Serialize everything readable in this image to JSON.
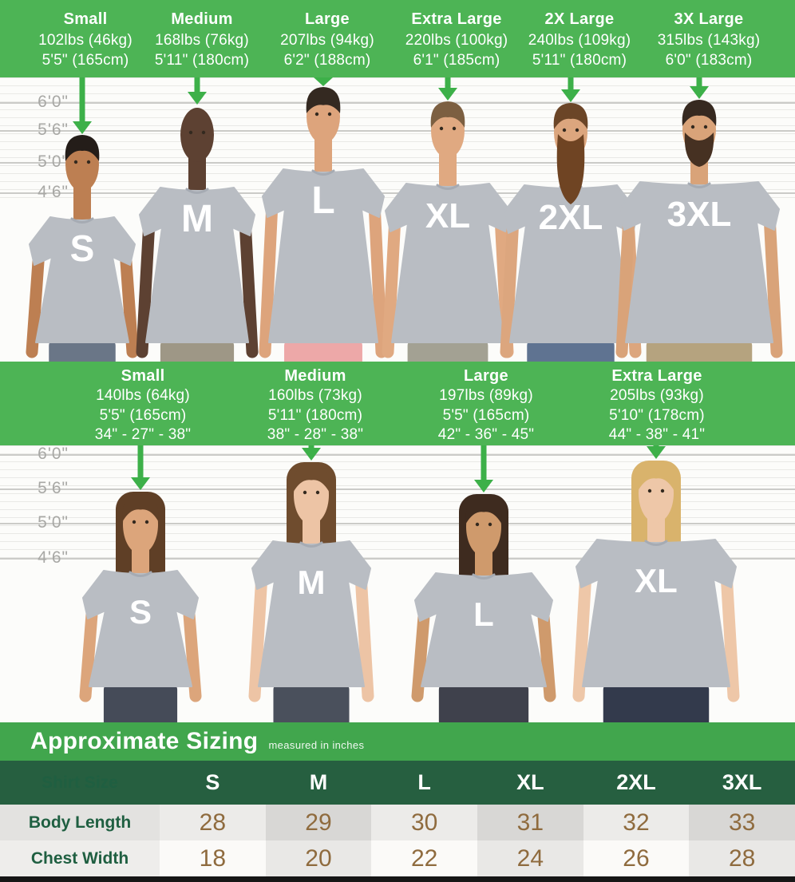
{
  "colors": {
    "bar_green": "#4db455",
    "sizing_bar_green": "#41a64d",
    "arrow_green": "#3db049",
    "table_header_green": "#265f40",
    "shirt_gray": "#b9bdc3",
    "shirt_letter_white": "#ffffff",
    "number_brown": "#8f6b3e",
    "row_label_green": "#1f5f41",
    "ruler_label_gray": "#a8a8a5",
    "row1_light": "#ecebe9",
    "row1_dark": "#d8d7d5",
    "row1_label": "#e3e2e0",
    "row2_light": "#fbfaf8",
    "row2_dark": "#e9e8e6",
    "row2_label": "#eeedeb"
  },
  "men": {
    "columns": [
      {
        "name": "Small",
        "weight": "102lbs (46kg)",
        "height": "5'5\" (165cm)"
      },
      {
        "name": "Medium",
        "weight": "168lbs (76kg)",
        "height": "5'11\" (180cm)"
      },
      {
        "name": "Large",
        "weight": "207lbs (94kg)",
        "height": "6'2\" (188cm)"
      },
      {
        "name": "Extra Large",
        "weight": "220lbs (100kg)",
        "height": "6'1\" (185cm)"
      },
      {
        "name": "2X Large",
        "weight": "240lbs (109kg)",
        "height": "5'11\" (180cm)"
      },
      {
        "name": "3X Large",
        "weight": "315lbs (143kg)",
        "height": "6'0\" (183cm)"
      }
    ],
    "height_marks": [
      "6'0\"",
      "5'6\"",
      "5'0\"",
      "4'6\""
    ],
    "people": [
      {
        "shirt_label": "S",
        "skin": "#bd7f52",
        "hair": "#241d19",
        "hair_style": "short",
        "beard": "none",
        "beard_color": "",
        "pants": "#6a7687"
      },
      {
        "shirt_label": "M",
        "skin": "#5d4132",
        "hair": "#3a2a20",
        "hair_style": "bald",
        "beard": "none",
        "beard_color": "",
        "pants": "#9e9786"
      },
      {
        "shirt_label": "L",
        "skin": "#dda47c",
        "hair": "#342921",
        "hair_style": "curly",
        "beard": "none",
        "beard_color": "",
        "pants": "#eda8a8"
      },
      {
        "shirt_label": "XL",
        "skin": "#e0a981",
        "hair": "#7c5f41",
        "hair_style": "short",
        "beard": "none",
        "beard_color": "",
        "pants": "#a3a193"
      },
      {
        "shirt_label": "2XL",
        "skin": "#dca67e",
        "hair": "#6b4527",
        "hair_style": "short",
        "beard": "long",
        "beard_color": "#6f4423",
        "pants": "#5f7391"
      },
      {
        "shirt_label": "3XL",
        "skin": "#d9a379",
        "hair": "#362920",
        "hair_style": "short",
        "beard": "full",
        "beard_color": "#463122",
        "pants": "#b5a37f"
      }
    ]
  },
  "women": {
    "columns": [
      {
        "name": "Small",
        "weight": "140lbs (64kg)",
        "height": "5'5\" (165cm)",
        "measurements": "34\" - 27\" - 38\""
      },
      {
        "name": "Medium",
        "weight": "160lbs (73kg)",
        "height": "5'11\" (180cm)",
        "measurements": "38\" - 28\" - 38\""
      },
      {
        "name": "Large",
        "weight": "197lbs (89kg)",
        "height": "5'5\" (165cm)",
        "measurements": "42\" - 36\" - 45\""
      },
      {
        "name": "Extra Large",
        "weight": "205lbs (93kg)",
        "height": "5'10\" (178cm)",
        "measurements": "44\" - 38\" - 41\""
      }
    ],
    "height_marks": [
      "6'0\"",
      "5'6\"",
      "5'0\"",
      "4'6\""
    ],
    "people": [
      {
        "shirt_label": "S",
        "skin": "#dca57b",
        "hair": "#5f3f26",
        "hair_style": "long",
        "beard": "none",
        "beard_color": "",
        "pants": "#454b58"
      },
      {
        "shirt_label": "M",
        "skin": "#edc4a5",
        "hair": "#6f4c2e",
        "hair_style": "long",
        "beard": "none",
        "beard_color": "",
        "pants": "#4a505c"
      },
      {
        "shirt_label": "L",
        "skin": "#cf9a6c",
        "hair": "#3e2b1f",
        "hair_style": "long",
        "beard": "none",
        "beard_color": "",
        "pants": "#3f414c"
      },
      {
        "shirt_label": "XL",
        "skin": "#eec7a8",
        "hair": "#d9b36c",
        "hair_style": "long",
        "beard": "none",
        "beard_color": "",
        "pants": "#333a4c"
      }
    ]
  },
  "sizing": {
    "title": "Approximate Sizing",
    "subtitle": "measured in inches",
    "table": {
      "header": [
        "Shirt Size",
        "S",
        "M",
        "L",
        "XL",
        "2XL",
        "3XL"
      ],
      "rows": [
        {
          "label": "Body Length",
          "values": [
            "28",
            "29",
            "30",
            "31",
            "32",
            "33"
          ]
        },
        {
          "label": "Chest Width",
          "values": [
            "18",
            "20",
            "22",
            "24",
            "26",
            "28"
          ]
        }
      ]
    }
  },
  "chart_data": {
    "type": "table",
    "title": "Approximate Sizing",
    "subtitle": "measured in inches",
    "columns": [
      "Shirt Size",
      "S",
      "M",
      "L",
      "XL",
      "2XL",
      "3XL"
    ],
    "rows": [
      [
        "Body Length",
        28,
        29,
        30,
        31,
        32,
        33
      ],
      [
        "Chest Width",
        18,
        20,
        22,
        24,
        26,
        28
      ]
    ]
  }
}
